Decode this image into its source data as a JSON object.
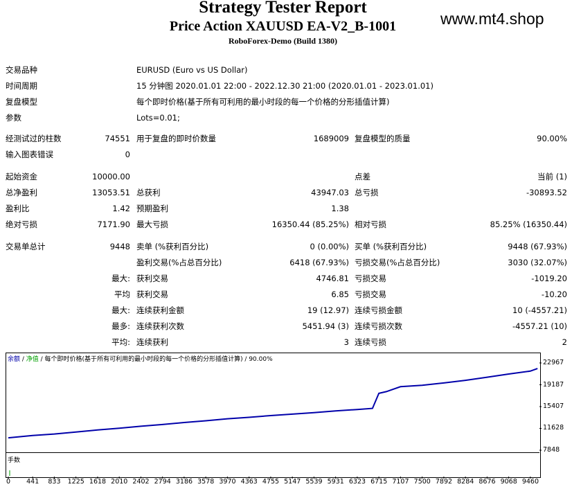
{
  "report": {
    "title": "Strategy Tester Report",
    "subtitle": "Price Action XAUUSD EA-V2_B-1001",
    "build": "RoboForex-Demo (Build 1380)",
    "watermark": "www.mt4.shop"
  },
  "info": {
    "symbol_label": "交易品种",
    "symbol_value": "EURUSD (Euro vs US Dollar)",
    "period_label": "时间周期",
    "period_value": "15 分钟图 2020.01.01 22:00 - 2022.12.30 21:00 (2020.01.01 - 2023.01.01)",
    "model_label": "复盘模型",
    "model_value": "每个即时价格(基于所有可利用的最小时段的每一个价格的分形插值计算)",
    "params_label": "参数",
    "params_value": "Lots=0.01;"
  },
  "stats": {
    "bars_label": "经测试过的柱数",
    "bars_value": "74551",
    "ticks_label": "用于复盘的即时价数量",
    "ticks_value": "1689009",
    "quality_label": "复盘模型的质量",
    "quality_value": "90.00%",
    "errors_label": "输入图表错误",
    "errors_value": "0",
    "deposit_label": "起始资金",
    "deposit_value": "10000.00",
    "spread_label": "点差",
    "spread_value": "当前 (1)",
    "net_label": "总净盈利",
    "net_value": "13053.51",
    "gross_profit_label": "总获利",
    "gross_profit_value": "43947.03",
    "gross_loss_label": "总亏损",
    "gross_loss_value": "-30893.52",
    "pf_label": "盈利比",
    "pf_value": "1.42",
    "payoff_label": "预期盈利",
    "payoff_value": "1.38",
    "abs_dd_label": "绝对亏损",
    "abs_dd_value": "7171.90",
    "max_dd_label": "最大亏损",
    "max_dd_value": "16350.44 (85.25%)",
    "rel_dd_label": "相对亏损",
    "rel_dd_value": "85.25% (16350.44)",
    "trades_label": "交易单总计",
    "trades_value": "9448",
    "short_label": "卖单 (%获利百分比)",
    "short_value": "0 (0.00%)",
    "long_label": "买单 (%获利百分比)",
    "long_value": "9448 (67.93%)",
    "profit_trades_label": "盈利交易(%占总百分比)",
    "profit_trades_value": "6418 (67.93%)",
    "loss_trades_label": "亏损交易(%占总百分比)",
    "loss_trades_value": "3030 (32.07%)",
    "largest_label": "最大:",
    "largest_profit_label": "获利交易",
    "largest_profit_value": "4746.81",
    "largest_loss_label": "亏损交易",
    "largest_loss_value": "-1019.20",
    "average_label": "平均",
    "average_profit_label": "获利交易",
    "average_profit_value": "6.85",
    "average_loss_label": "亏损交易",
    "average_loss_value": "-10.20",
    "max_label": "最大:",
    "max_consec_wins_label": "连续获利金额",
    "max_consec_wins_value": "19 (12.97)",
    "max_consec_losses_label": "连续亏损金额",
    "max_consec_losses_value": "10 (-4557.21)",
    "maximal_label": "最多:",
    "maximal_consec_profit_label": "连续获利次数",
    "maximal_consec_profit_value": "5451.94 (3)",
    "maximal_consec_loss_label": "连续亏损次数",
    "maximal_consec_loss_value": "-4557.21 (10)",
    "avg_consec_label": "平均:",
    "avg_consec_wins_label": "连续获利",
    "avg_consec_wins_value": "3",
    "avg_consec_losses_label": "连续亏损",
    "avg_consec_losses_value": "2"
  },
  "chart_legend": {
    "balance": "余额",
    "sep1": " / ",
    "equity": "净值",
    "rest": " / 每个即时价格(基于所有可利用的最小时段的每一个价格的分形插值计算) / 90.00%"
  },
  "lots_label": "手数",
  "colors": {
    "balance": "#0000aa",
    "equity": "#00a000"
  },
  "chart_data": {
    "type": "line",
    "ylim": [
      7848,
      22967
    ],
    "y_ticks": [
      "22967",
      "19187",
      "15407",
      "11628",
      "7848"
    ],
    "x_ticks": [
      "0",
      "441",
      "833",
      "1225",
      "1618",
      "2010",
      "2402",
      "2794",
      "3186",
      "3578",
      "3970",
      "4363",
      "4755",
      "5147",
      "5539",
      "5931",
      "6323",
      "6715",
      "7107",
      "7500",
      "7892",
      "8284",
      "8676",
      "9068",
      "9460"
    ],
    "xlim": [
      0,
      9600
    ],
    "series": [
      {
        "name": "余额",
        "x": [
          0,
          441,
          833,
          1225,
          1618,
          2010,
          2402,
          2794,
          3186,
          3578,
          3970,
          4363,
          4755,
          5147,
          5539,
          5931,
          6323,
          6600,
          6715,
          6850,
          7107,
          7500,
          7892,
          8284,
          8676,
          9068,
          9460,
          9590
        ],
        "y": [
          10000,
          10400,
          10650,
          11000,
          11350,
          11650,
          12000,
          12300,
          12650,
          12950,
          13300,
          13550,
          13850,
          14100,
          14350,
          14650,
          14900,
          15100,
          17700,
          18000,
          18850,
          19100,
          19500,
          19950,
          20500,
          21050,
          21550,
          22000
        ]
      }
    ]
  }
}
